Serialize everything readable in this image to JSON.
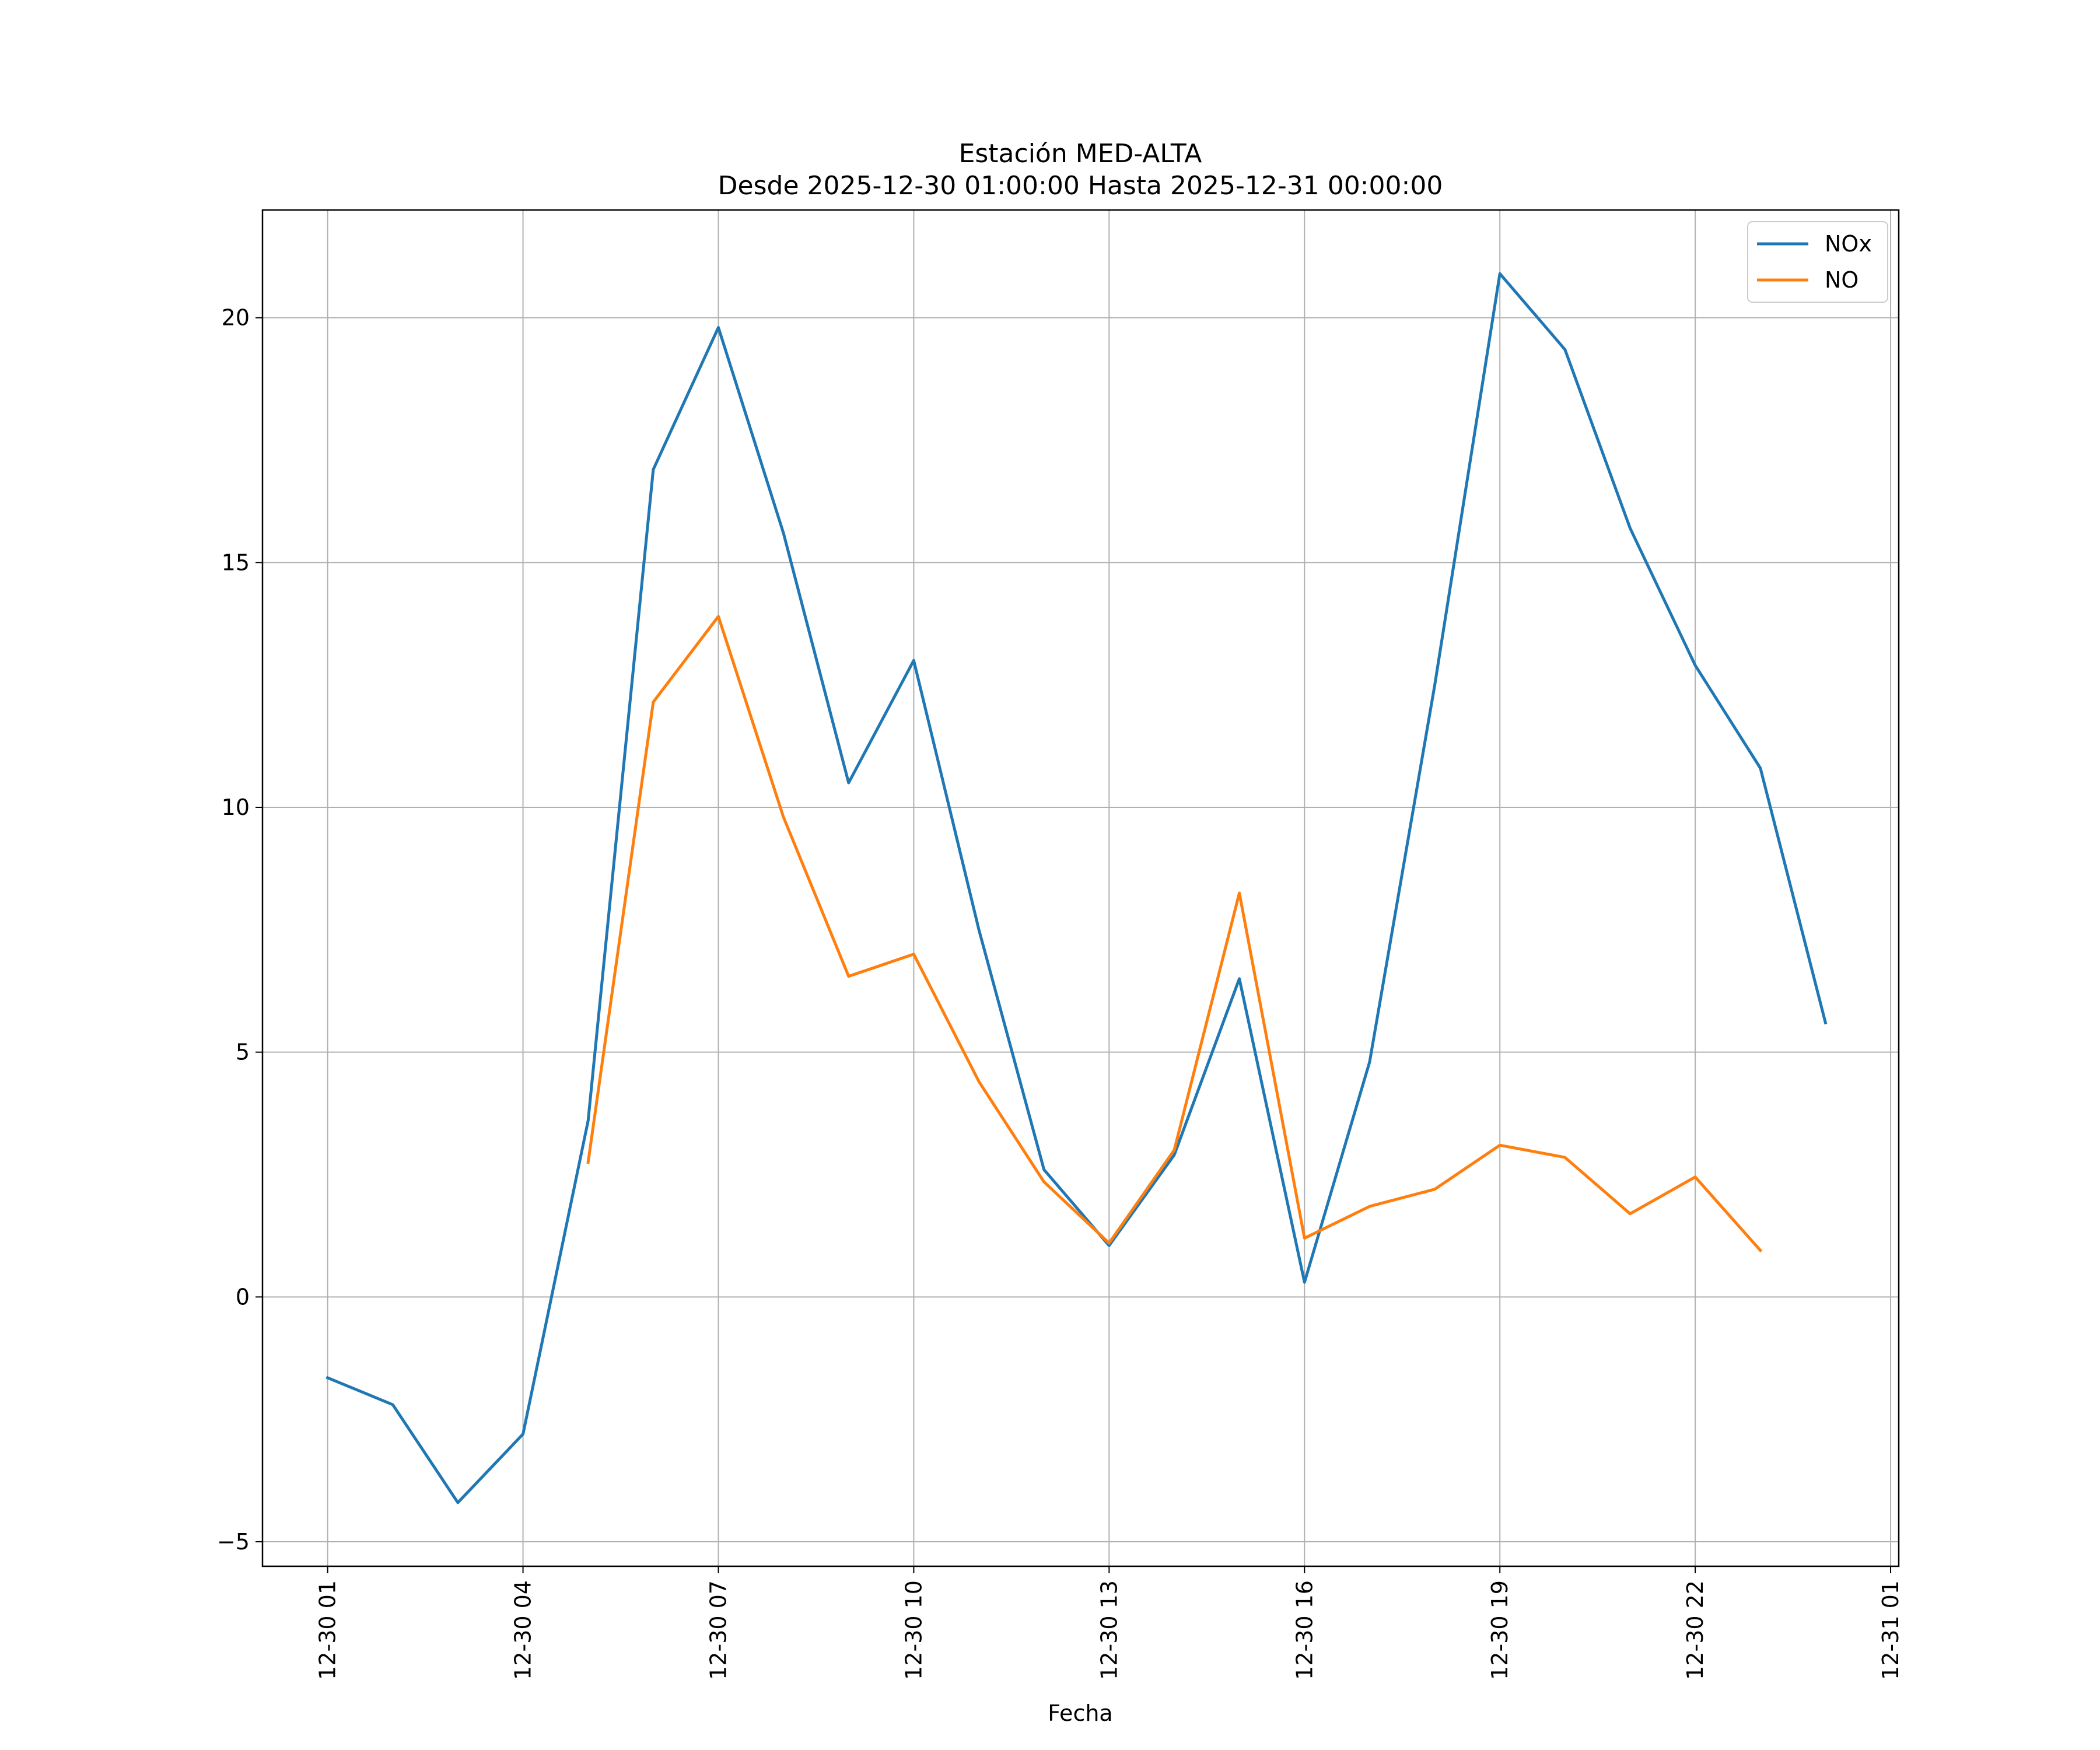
{
  "chart_data": {
    "type": "line",
    "title": "Estación MED-ALTA",
    "subtitle": "Desde 2025-12-30 01:00:00 Hasta 2025-12-31 00:00:00",
    "xlabel": "Fecha",
    "ylabel": "",
    "x": [
      "2025-12-30 01:00",
      "2025-12-30 02:00",
      "2025-12-30 03:00",
      "2025-12-30 04:00",
      "2025-12-30 05:00",
      "2025-12-30 06:00",
      "2025-12-30 07:00",
      "2025-12-30 08:00",
      "2025-12-30 09:00",
      "2025-12-30 10:00",
      "2025-12-30 11:00",
      "2025-12-30 12:00",
      "2025-12-30 13:00",
      "2025-12-30 14:00",
      "2025-12-30 15:00",
      "2025-12-30 16:00",
      "2025-12-30 17:00",
      "2025-12-30 18:00",
      "2025-12-30 19:00",
      "2025-12-30 20:00",
      "2025-12-30 21:00",
      "2025-12-30 22:00",
      "2025-12-30 23:00",
      "2025-12-31 00:00"
    ],
    "xlim": [
      "2025-12-30 00:00:00",
      "2025-12-31 01:07:30"
    ],
    "ylim": [
      -5.5,
      22.2
    ],
    "yticks": [
      -5,
      0,
      5,
      10,
      15,
      20
    ],
    "ytick_labels": [
      "−5",
      "0",
      "5",
      "10",
      "15",
      "20"
    ],
    "xticks": [
      "2025-12-30 01:00",
      "2025-12-30 04:00",
      "2025-12-30 07:00",
      "2025-12-30 10:00",
      "2025-12-30 13:00",
      "2025-12-30 16:00",
      "2025-12-30 19:00",
      "2025-12-30 22:00",
      "2025-12-31 01:00"
    ],
    "xtick_labels": [
      "12-30 01",
      "12-30 04",
      "12-30 07",
      "12-30 10",
      "12-30 13",
      "12-30 16",
      "12-30 19",
      "12-30 22",
      "12-31 01"
    ],
    "grid": true,
    "legend_position": "top-right",
    "series": [
      {
        "name": "NOx",
        "color": "#1f77b4",
        "values": [
          -1.65,
          -2.2,
          -4.2,
          -2.8,
          3.6,
          16.9,
          19.8,
          15.6,
          10.5,
          13.0,
          7.5,
          2.6,
          1.05,
          2.9,
          6.5,
          0.3,
          4.8,
          12.5,
          20.9,
          19.35,
          15.7,
          12.9,
          10.8,
          5.6
        ]
      },
      {
        "name": "NO",
        "color": "#ff7f0e",
        "values": [
          null,
          null,
          null,
          null,
          2.75,
          12.15,
          13.9,
          9.8,
          6.55,
          7.0,
          4.4,
          2.35,
          1.1,
          3.0,
          8.25,
          1.2,
          1.85,
          2.2,
          3.1,
          2.85,
          1.7,
          2.45,
          0.95,
          null
        ]
      }
    ]
  }
}
